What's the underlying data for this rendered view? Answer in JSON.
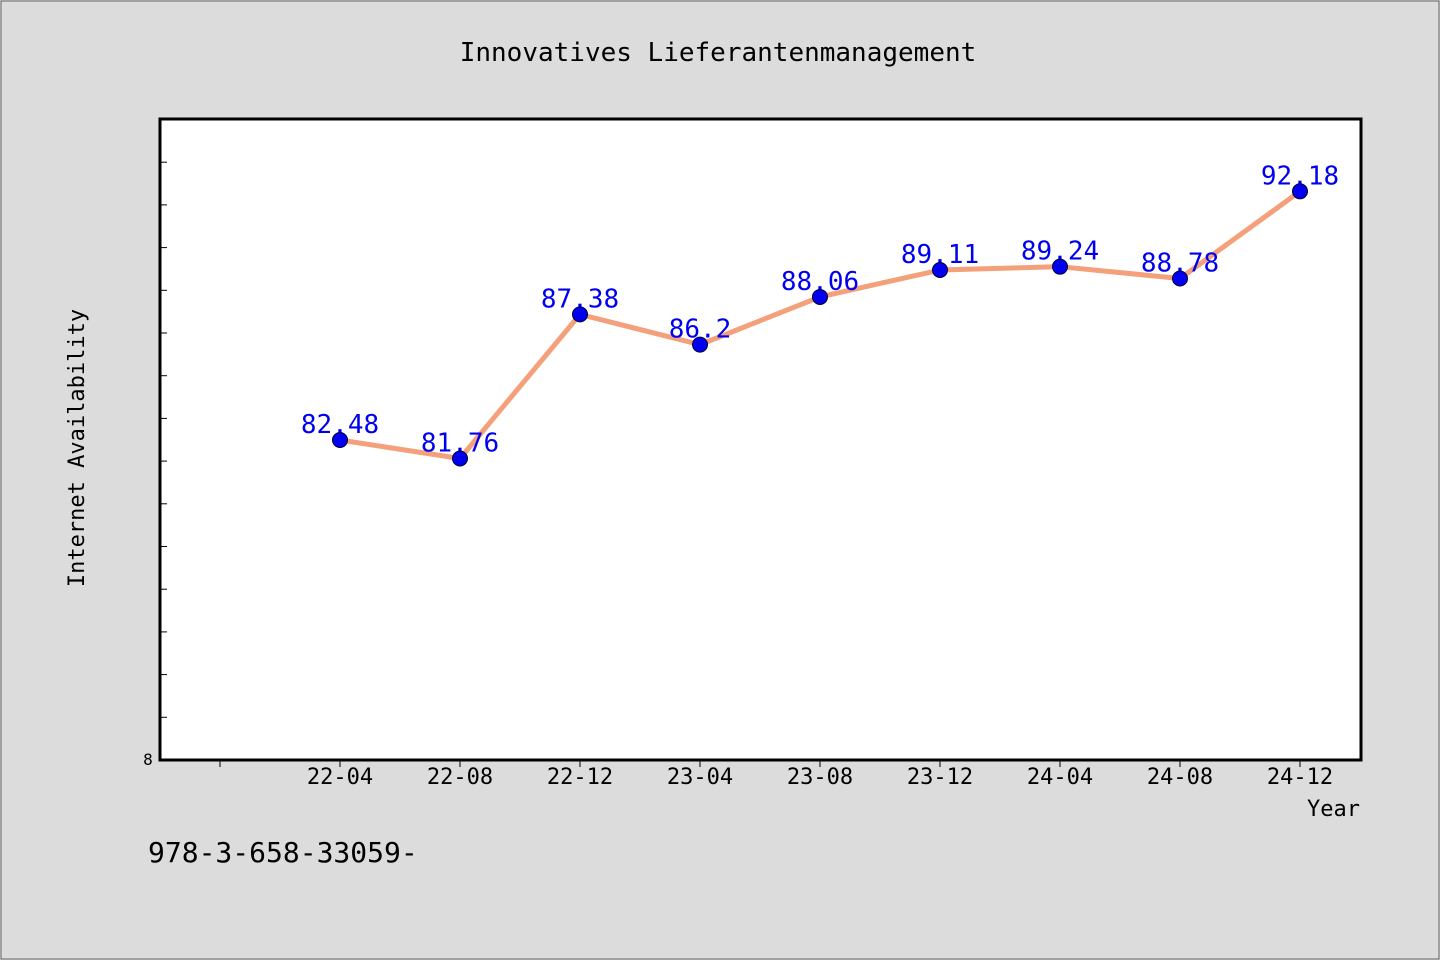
{
  "chart_data": {
    "type": "line",
    "title": "Innovatives Lieferantenmanagement",
    "xlabel": "Year",
    "ylabel": "Internet Availability",
    "categories": [
      "22-04",
      "22-08",
      "22-12",
      "23-04",
      "23-08",
      "23-12",
      "24-04",
      "24-08",
      "24-12"
    ],
    "series": [
      {
        "name": "",
        "values": [
          82.48,
          81.76,
          87.38,
          86.2,
          88.06,
          89.11,
          89.24,
          88.78,
          92.18
        ],
        "data_labels": [
          "82.48",
          "81.76",
          "87.38",
          "86.2",
          "88.06",
          "89.11",
          "89.24",
          "88.78",
          "92.18"
        ]
      }
    ],
    "ylim": [
      70,
      95
    ],
    "y_origin_label": "8",
    "line_color": "#f4a07a",
    "marker_color": "#0000ee",
    "label_color": "#0000ee",
    "grid": false
  },
  "footer": {
    "isbn": "978-3-658-33059-"
  }
}
